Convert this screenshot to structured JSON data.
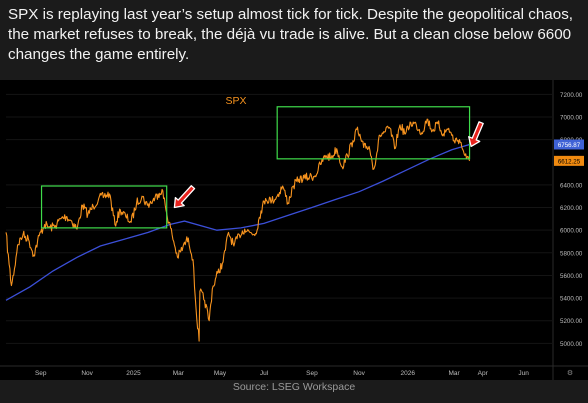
{
  "caption": "SPX is replaying last year’s setup almost tick for tick. Despite the geopolitical chaos, the market refuses to break, the déjà vu trade is alive. But a clean close below 6600 changes the game entirely.",
  "source": "Source: LSEG Workspace",
  "colors": {
    "price": "#f7931e",
    "ma": "#3b4fd8",
    "box": "#3fdc4b",
    "arrow": "#e8231e",
    "ma_tag_bg": "#3f62d6",
    "price_tag_bg": "#f08a10"
  },
  "chart_data": {
    "type": "line",
    "title": "SPX",
    "xlabel": "",
    "ylabel": "",
    "ylim": [
      4800,
      7300
    ],
    "x_ticks": [
      "Sep",
      "Nov",
      "2025",
      "Mar",
      "May",
      "Jul",
      "Sep",
      "Nov",
      "2026",
      "Mar",
      "Apr",
      "Jun"
    ],
    "y_ticks": [
      "5000.00",
      "5200.00",
      "5400.00",
      "5600.00",
      "5800.00",
      "6000.00",
      "6200.00",
      "6400.00",
      "6800.00",
      "7000.00",
      "7200.00"
    ],
    "last_values": {
      "ma": "6756.87",
      "price": "6612.25"
    },
    "series": [
      {
        "type": "price",
        "points": [
          [
            "2024-08-01",
            5980
          ],
          [
            "2024-08-05",
            5700
          ],
          [
            "2024-08-08",
            5510
          ],
          [
            "2024-08-12",
            5660
          ],
          [
            "2024-08-16",
            5870
          ],
          [
            "2024-08-23",
            5960
          ],
          [
            "2024-08-30",
            5920
          ],
          [
            "2024-09-06",
            5780
          ],
          [
            "2024-09-13",
            5950
          ],
          [
            "2024-09-20",
            6050
          ],
          [
            "2024-09-27",
            6020
          ],
          [
            "2024-10-04",
            6040
          ],
          [
            "2024-10-11",
            6100
          ],
          [
            "2024-10-18",
            6120
          ],
          [
            "2024-10-25",
            6080
          ],
          [
            "2024-11-01",
            6010
          ],
          [
            "2024-11-08",
            6220
          ],
          [
            "2024-11-15",
            6140
          ],
          [
            "2024-11-22",
            6210
          ],
          [
            "2024-11-29",
            6280
          ],
          [
            "2024-12-06",
            6300
          ],
          [
            "2024-12-13",
            6320
          ],
          [
            "2024-12-20",
            6050
          ],
          [
            "2024-12-27",
            6180
          ],
          [
            "2025-01-03",
            6120
          ],
          [
            "2025-01-10",
            6070
          ],
          [
            "2025-01-17",
            6240
          ],
          [
            "2025-01-24",
            6300
          ],
          [
            "2025-01-31",
            6220
          ],
          [
            "2025-02-07",
            6260
          ],
          [
            "2025-02-14",
            6320
          ],
          [
            "2025-02-19",
            6360
          ],
          [
            "2025-02-25",
            6150
          ],
          [
            "2025-03-04",
            5960
          ],
          [
            "2025-03-11",
            5760
          ],
          [
            "2025-03-18",
            5850
          ],
          [
            "2025-03-25",
            5930
          ],
          [
            "2025-03-31",
            5740
          ],
          [
            "2025-04-04",
            5300
          ],
          [
            "2025-04-08",
            5020
          ],
          [
            "2025-04-09",
            5460
          ],
          [
            "2025-04-15",
            5380
          ],
          [
            "2025-04-21",
            5200
          ],
          [
            "2025-04-25",
            5480
          ],
          [
            "2025-05-02",
            5620
          ],
          [
            "2025-05-09",
            5720
          ],
          [
            "2025-05-16",
            5980
          ],
          [
            "2025-05-23",
            5860
          ],
          [
            "2025-05-30",
            5960
          ],
          [
            "2025-06-06",
            6010
          ],
          [
            "2025-06-13",
            5980
          ],
          [
            "2025-06-20",
            5970
          ],
          [
            "2025-06-27",
            6170
          ],
          [
            "2025-07-03",
            6280
          ],
          [
            "2025-07-11",
            6260
          ],
          [
            "2025-07-18",
            6300
          ],
          [
            "2025-07-25",
            6390
          ],
          [
            "2025-08-01",
            6240
          ],
          [
            "2025-08-08",
            6390
          ],
          [
            "2025-08-15",
            6450
          ],
          [
            "2025-08-22",
            6460
          ],
          [
            "2025-08-29",
            6470
          ],
          [
            "2025-09-05",
            6480
          ],
          [
            "2025-09-12",
            6580
          ],
          [
            "2025-09-19",
            6660
          ],
          [
            "2025-09-26",
            6640
          ],
          [
            "2025-10-03",
            6720
          ],
          [
            "2025-10-10",
            6560
          ],
          [
            "2025-10-17",
            6660
          ],
          [
            "2025-10-24",
            6790
          ],
          [
            "2025-10-29",
            6890
          ],
          [
            "2025-11-07",
            6730
          ],
          [
            "2025-11-14",
            6740
          ],
          [
            "2025-11-20",
            6540
          ],
          [
            "2025-11-28",
            6840
          ],
          [
            "2025-12-05",
            6870
          ],
          [
            "2025-12-11",
            6900
          ],
          [
            "2025-12-17",
            6720
          ],
          [
            "2025-12-24",
            6930
          ],
          [
            "2025-12-31",
            6850
          ],
          [
            "2026-01-07",
            6950
          ],
          [
            "2026-01-14",
            6930
          ],
          [
            "2026-01-21",
            6860
          ],
          [
            "2026-01-28",
            6980
          ],
          [
            "2026-02-04",
            6880
          ],
          [
            "2026-02-11",
            6940
          ],
          [
            "2026-02-18",
            6850
          ],
          [
            "2026-02-25",
            6900
          ],
          [
            "2026-03-04",
            6790
          ],
          [
            "2026-03-11",
            6800
          ],
          [
            "2026-03-16",
            6700
          ],
          [
            "2026-03-20",
            6630
          ],
          [
            "2026-03-24",
            6612
          ]
        ]
      },
      {
        "type": "moving-average",
        "points": [
          [
            "2024-08-01",
            5380
          ],
          [
            "2024-09-01",
            5500
          ],
          [
            "2024-10-01",
            5640
          ],
          [
            "2024-11-01",
            5760
          ],
          [
            "2024-12-01",
            5860
          ],
          [
            "2025-01-01",
            5920
          ],
          [
            "2025-02-01",
            5980
          ],
          [
            "2025-03-01",
            6050
          ],
          [
            "2025-03-20",
            6080
          ],
          [
            "2025-04-15",
            6030
          ],
          [
            "2025-05-01",
            6000
          ],
          [
            "2025-06-01",
            6020
          ],
          [
            "2025-07-01",
            6060
          ],
          [
            "2025-08-01",
            6130
          ],
          [
            "2025-09-01",
            6200
          ],
          [
            "2025-10-01",
            6270
          ],
          [
            "2025-11-01",
            6340
          ],
          [
            "2025-12-01",
            6430
          ],
          [
            "2026-01-01",
            6530
          ],
          [
            "2026-02-01",
            6630
          ],
          [
            "2026-03-01",
            6710
          ],
          [
            "2026-03-24",
            6757
          ]
        ]
      }
    ],
    "annotations": {
      "boxes": [
        {
          "x0": "2024-09-16",
          "x1": "2025-02-25",
          "y0": 6020,
          "y1": 6390
        },
        {
          "x0": "2025-07-18",
          "x1": "2026-03-24",
          "y0": 6630,
          "y1": 7090
        }
      ],
      "arrows": [
        {
          "from": [
            "2025-03-31",
            6380
          ],
          "to": [
            "2025-03-07",
            6200
          ]
        },
        {
          "from": [
            "2026-04-08",
            6950
          ],
          "to": [
            "2026-03-26",
            6740
          ]
        }
      ]
    }
  }
}
